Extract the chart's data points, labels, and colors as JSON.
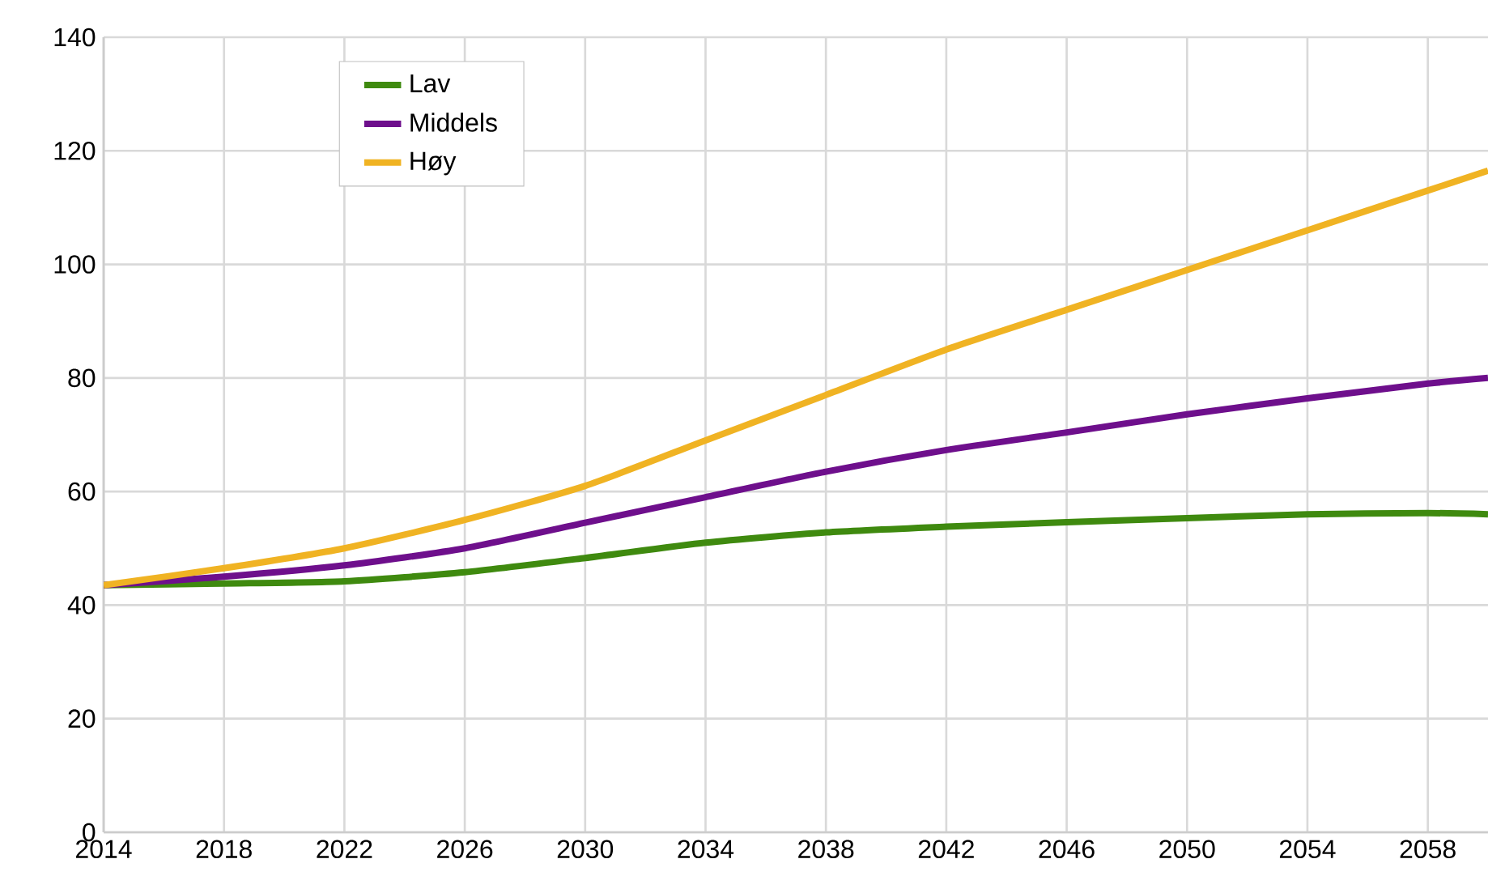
{
  "chart_data": {
    "type": "line",
    "x": [
      2014,
      2018,
      2022,
      2026,
      2030,
      2034,
      2038,
      2042,
      2046,
      2050,
      2054,
      2058,
      2060
    ],
    "series": [
      {
        "name": "Lav",
        "color": "#3f8a0f",
        "values": [
          43.5,
          43.8,
          44.2,
          45.8,
          48.3,
          51,
          52.8,
          53.8,
          54.6,
          55.3,
          56,
          56.2,
          56
        ]
      },
      {
        "name": "Middels",
        "color": "#6e0f8c",
        "values": [
          43.5,
          45,
          47,
          50,
          54.5,
          59,
          63.5,
          67.3,
          70.4,
          73.6,
          76.4,
          79,
          80
        ]
      },
      {
        "name": "Høy",
        "color": "#f0b323",
        "values": [
          43.5,
          46.5,
          50,
          55,
          61,
          69,
          77,
          85,
          92,
          99,
          106,
          113,
          116.5
        ]
      }
    ],
    "xlim": [
      2014,
      2060
    ],
    "xticks": [
      2014,
      2018,
      2022,
      2026,
      2030,
      2034,
      2038,
      2042,
      2046,
      2050,
      2054,
      2058
    ],
    "ylim": [
      0,
      140
    ],
    "yticks": [
      0,
      20,
      40,
      60,
      80,
      100,
      120,
      140
    ],
    "grid": true,
    "legend": "top left",
    "marker": "none",
    "line_style": "solid"
  }
}
